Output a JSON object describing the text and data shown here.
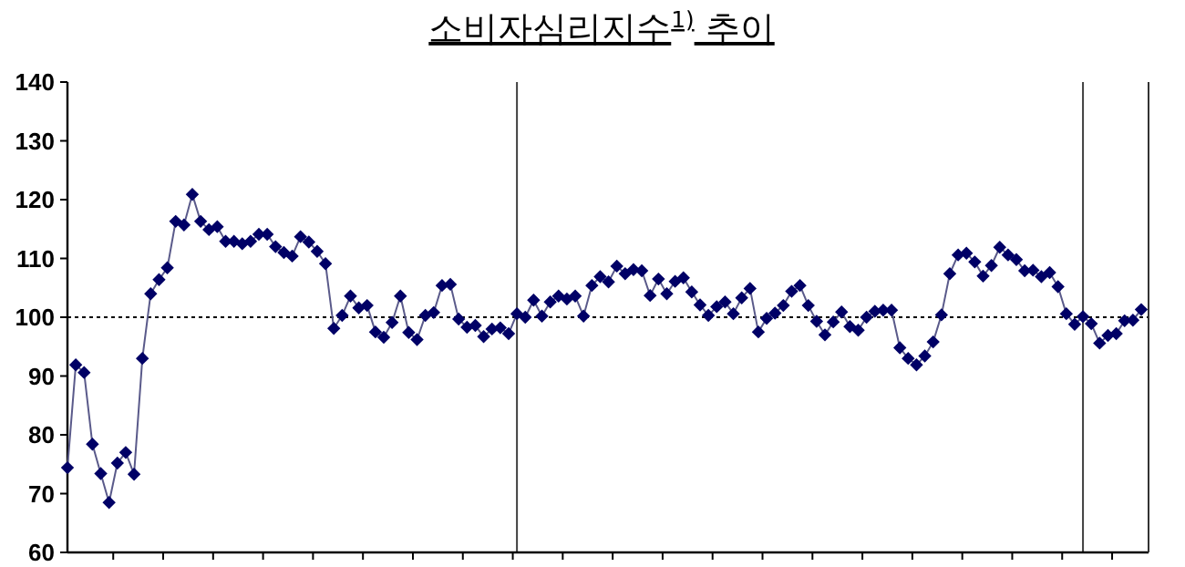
{
  "chart_data": {
    "type": "line",
    "title": "소비자심리지수$^{1)}$ 추이",
    "categories": [
      null,
      null,
      null,
      null,
      null,
      null,
      null,
      null,
      null,
      null,
      null,
      null,
      null,
      null,
      null,
      null,
      null,
      null,
      null,
      null,
      null,
      null,
      null,
      null,
      null,
      null,
      null,
      null,
      null,
      null,
      null,
      null,
      null,
      null,
      null,
      null,
      null,
      null,
      null,
      null,
      null,
      null,
      null,
      null,
      null,
      null,
      null,
      null,
      null,
      null,
      null,
      null,
      null,
      null,
      null,
      null,
      null,
      null,
      null,
      null,
      null,
      null,
      null,
      null,
      null,
      null,
      null,
      null,
      null,
      null,
      null,
      null,
      null,
      null,
      null,
      null,
      null,
      null,
      null,
      null,
      null,
      null,
      null,
      null,
      null,
      null,
      null,
      null,
      null,
      null,
      null,
      null,
      null,
      null,
      null,
      null,
      null,
      null,
      null,
      null,
      null,
      null,
      null,
      null,
      null,
      null,
      null,
      null,
      null,
      null,
      null,
      null,
      null,
      null,
      null,
      null,
      null,
      null,
      null,
      null,
      null,
      null,
      null,
      null,
      null,
      null,
      null,
      null,
      null,
      null
    ],
    "values": [
      74.4,
      91.9,
      90.6,
      78.4,
      73.4,
      68.5,
      75.2,
      77.0,
      73.3,
      93.0,
      104.0,
      106.4,
      108.4,
      116.3,
      115.7,
      120.9,
      116.3,
      114.9,
      115.4,
      112.9,
      112.9,
      112.5,
      112.9,
      114.1,
      114.1,
      112.0,
      111.0,
      110.4,
      113.7,
      112.8,
      111.2,
      109.1,
      98.1,
      100.3,
      103.6,
      101.6,
      102.0,
      97.5,
      96.6,
      99.1,
      103.6,
      97.4,
      96.2,
      100.3,
      100.8,
      105.4,
      105.6,
      99.7,
      98.3,
      98.6,
      96.7,
      98.0,
      98.2,
      97.2,
      100.6,
      100.0,
      102.9,
      100.2,
      102.6,
      103.6,
      103.1,
      103.6,
      100.2,
      105.4,
      106.9,
      106.0,
      108.7,
      107.4,
      108.1,
      107.9,
      103.7,
      106.5,
      104.0,
      106.1,
      106.7,
      104.3,
      102.1,
      100.3,
      101.8,
      102.6,
      100.6,
      103.3,
      104.9,
      97.5,
      99.8,
      100.7,
      102.0,
      104.4,
      105.4,
      102.0,
      99.3,
      97.0,
      99.2,
      100.9,
      98.4,
      97.8,
      100.0,
      101.0,
      101.2,
      101.2,
      94.8,
      93.0,
      91.9,
      93.4,
      95.8,
      100.4,
      107.4,
      110.6,
      110.9,
      109.4,
      107.0,
      108.8,
      111.9,
      110.6,
      109.8,
      107.9,
      108.0,
      106.9,
      107.6,
      105.2,
      100.6,
      98.8,
      100.1,
      98.9,
      95.6,
      96.9,
      97.2,
      99.4,
      99.5,
      101.3
    ],
    "color": "#000066",
    "marker": "diamond",
    "ylim": [
      60,
      140
    ],
    "yticks": [
      60,
      70,
      80,
      90,
      100,
      110,
      120,
      130,
      140
    ],
    "ref_lines": [
      {
        "axis": "y",
        "value": 100,
        "line_style": "dotted",
        "color": "#000000"
      }
    ]
  }
}
